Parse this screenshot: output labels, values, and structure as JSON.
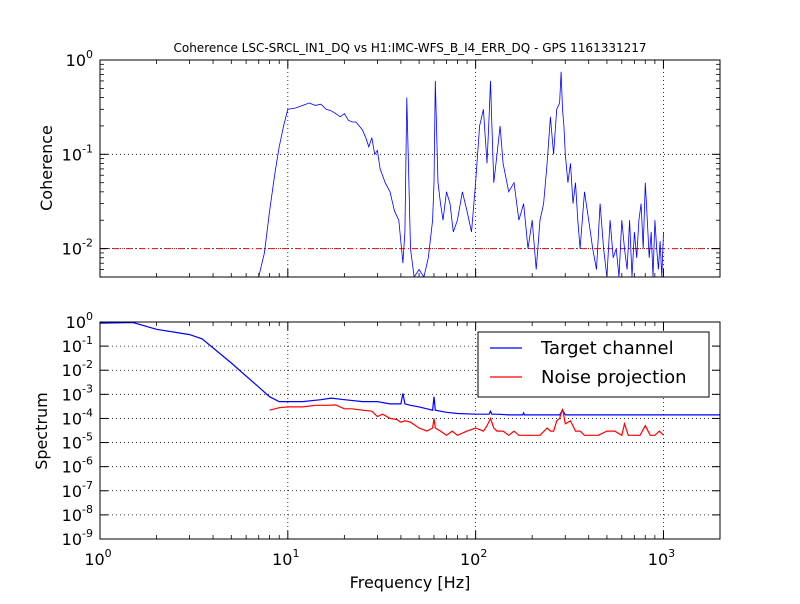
{
  "figure": {
    "title": "Coherence LSC-SRCL_IN1_DQ vs H1:IMC-WFS_B_I4_ERR_DQ - GPS 1161331217",
    "xlabel": "Frequency [Hz]"
  },
  "chart_data": [
    {
      "type": "line",
      "panel": "coherence",
      "title": "Coherence LSC-SRCL_IN1_DQ vs H1:IMC-WFS_B_I4_ERR_DQ - GPS 1161331217",
      "xlabel": "Frequency [Hz]",
      "ylabel": "Coherence",
      "xscale": "log",
      "yscale": "log",
      "xlim": [
        1,
        2000
      ],
      "ylim": [
        0.005,
        1
      ],
      "grid": true,
      "color": "#0000ff",
      "threshold": {
        "value": 0.01,
        "color": "#ff0000",
        "style": "dash-dot"
      },
      "x_ticks": [
        {
          "value": 1,
          "base": "10",
          "exp": "0"
        },
        {
          "value": 10,
          "base": "10",
          "exp": "1"
        },
        {
          "value": 100,
          "base": "10",
          "exp": "2"
        },
        {
          "value": 1000,
          "base": "10",
          "exp": "3"
        }
      ],
      "y_ticks": [
        {
          "value": 1,
          "base": "10",
          "exp": "0"
        },
        {
          "value": 0.1,
          "base": "10",
          "exp": "-1"
        },
        {
          "value": 0.01,
          "base": "10",
          "exp": "-2"
        }
      ],
      "series": [
        {
          "x": [
            7,
            7.5,
            8,
            8.5,
            9,
            9.5,
            10,
            11,
            12,
            13,
            14,
            15,
            16,
            17,
            18,
            19,
            20,
            21,
            22,
            23,
            24,
            25,
            26,
            27,
            28,
            29,
            30,
            31,
            33,
            35,
            37,
            39,
            41,
            42,
            43,
            45,
            47,
            50,
            53,
            56,
            59,
            60,
            61,
            63,
            65,
            67,
            70,
            73,
            76,
            80,
            85,
            90,
            95,
            100,
            105,
            110,
            115,
            118,
            120,
            122,
            125,
            130,
            135,
            140,
            150,
            160,
            170,
            180,
            190,
            200,
            210,
            220,
            230,
            240,
            250,
            260,
            270,
            280,
            285,
            290,
            295,
            300,
            310,
            320,
            330,
            340,
            350,
            360,
            380,
            400,
            420,
            440,
            460,
            480,
            500,
            520,
            540,
            560,
            580,
            600,
            620,
            640,
            660,
            680,
            700,
            720,
            740,
            760,
            780,
            800,
            820,
            840,
            860,
            880,
            900,
            920,
            940,
            960,
            980,
            1000
          ],
          "values": [
            0.005,
            0.009,
            0.025,
            0.06,
            0.12,
            0.2,
            0.3,
            0.31,
            0.33,
            0.35,
            0.33,
            0.34,
            0.3,
            0.29,
            0.27,
            0.25,
            0.27,
            0.23,
            0.22,
            0.22,
            0.2,
            0.18,
            0.15,
            0.12,
            0.15,
            0.1,
            0.11,
            0.07,
            0.05,
            0.04,
            0.025,
            0.02,
            0.007,
            0.015,
            0.4,
            0.01,
            0.005,
            0.006,
            0.005,
            0.008,
            0.02,
            0.05,
            0.6,
            0.05,
            0.03,
            0.02,
            0.04,
            0.03,
            0.015,
            0.02,
            0.04,
            0.025,
            0.015,
            0.05,
            0.2,
            0.3,
            0.08,
            0.25,
            0.6,
            0.2,
            0.05,
            0.1,
            0.2,
            0.08,
            0.04,
            0.05,
            0.02,
            0.03,
            0.01,
            0.02,
            0.006,
            0.02,
            0.03,
            0.08,
            0.25,
            0.1,
            0.3,
            0.35,
            0.75,
            0.3,
            0.2,
            0.1,
            0.05,
            0.08,
            0.03,
            0.05,
            0.02,
            0.01,
            0.04,
            0.02,
            0.01,
            0.006,
            0.03,
            0.01,
            0.005,
            0.02,
            0.008,
            0.01,
            0.005,
            0.02,
            0.01,
            0.006,
            0.02,
            0.005,
            0.015,
            0.008,
            0.02,
            0.03,
            0.01,
            0.05,
            0.02,
            0.008,
            0.015,
            0.005,
            0.02,
            0.01,
            0.006,
            0.012,
            0.005,
            0.015
          ]
        }
      ]
    },
    {
      "type": "line",
      "panel": "spectrum",
      "xlabel": "Frequency [Hz]",
      "ylabel": "Spectrum",
      "xscale": "log",
      "yscale": "log",
      "xlim": [
        1,
        2000
      ],
      "ylim": [
        1e-09,
        1
      ],
      "grid": true,
      "legend_position": "top-right",
      "x_ticks": [
        {
          "value": 1,
          "base": "10",
          "exp": "0"
        },
        {
          "value": 10,
          "base": "10",
          "exp": "1"
        },
        {
          "value": 100,
          "base": "10",
          "exp": "2"
        },
        {
          "value": 1000,
          "base": "10",
          "exp": "3"
        }
      ],
      "y_ticks": [
        {
          "value": 1,
          "base": "10",
          "exp": "0"
        },
        {
          "value": 0.1,
          "base": "10",
          "exp": "-1"
        },
        {
          "value": 0.01,
          "base": "10",
          "exp": "-2"
        },
        {
          "value": 0.001,
          "base": "10",
          "exp": "-3"
        },
        {
          "value": 0.0001,
          "base": "10",
          "exp": "-4"
        },
        {
          "value": 1e-05,
          "base": "10",
          "exp": "-5"
        },
        {
          "value": 1e-06,
          "base": "10",
          "exp": "-6"
        },
        {
          "value": 1e-07,
          "base": "10",
          "exp": "-7"
        },
        {
          "value": 1e-08,
          "base": "10",
          "exp": "-8"
        },
        {
          "value": 1e-09,
          "base": "10",
          "exp": "-9"
        }
      ],
      "series": [
        {
          "name": "Target channel",
          "color": "#0000ff",
          "x": [
            1,
            1.5,
            2,
            3,
            3.5,
            5,
            7,
            8,
            9,
            10,
            12,
            15,
            17,
            20,
            25,
            30,
            35,
            40,
            41,
            42,
            45,
            50,
            55,
            59,
            60,
            61,
            65,
            70,
            80,
            100,
            110,
            118,
            120,
            122,
            130,
            150,
            170,
            178,
            180,
            182,
            200,
            250,
            280,
            290,
            300,
            350,
            400,
            500,
            600,
            800,
            1000,
            1500,
            2000
          ],
          "values": [
            0.9,
            0.95,
            0.5,
            0.3,
            0.2,
            0.02,
            0.002,
            0.0008,
            0.0005,
            0.0005,
            0.0005,
            0.0006,
            0.0007,
            0.0006,
            0.0005,
            0.0005,
            0.0004,
            0.0004,
            0.0011,
            0.0004,
            0.00035,
            0.0003,
            0.00025,
            0.00022,
            0.0008,
            0.00022,
            0.0002,
            0.00018,
            0.00016,
            0.00015,
            0.00015,
            0.00015,
            0.0002,
            0.00015,
            0.00015,
            0.00014,
            0.00014,
            0.00014,
            0.00017,
            0.00014,
            0.00014,
            0.00014,
            0.00014,
            0.00022,
            0.00014,
            0.00014,
            0.00014,
            0.00014,
            0.00014,
            0.00014,
            0.00014,
            0.00014,
            0.00014
          ]
        },
        {
          "name": "Noise projection",
          "color": "#ff0000",
          "x": [
            8,
            9,
            10,
            12,
            14,
            16,
            18,
            20,
            22,
            25,
            28,
            30,
            32,
            35,
            38,
            40,
            42,
            45,
            48,
            50,
            55,
            59,
            60,
            61,
            65,
            70,
            75,
            80,
            90,
            100,
            110,
            115,
            120,
            125,
            130,
            140,
            150,
            160,
            170,
            180,
            200,
            220,
            240,
            250,
            260,
            270,
            280,
            290,
            300,
            320,
            340,
            360,
            380,
            400,
            450,
            500,
            550,
            600,
            620,
            650,
            700,
            750,
            800,
            850,
            900,
            950,
            1000
          ],
          "values": [
            0.00022,
            0.00028,
            0.0003,
            0.0003,
            0.00035,
            0.00035,
            0.00036,
            0.00025,
            0.00025,
            0.00022,
            0.0002,
            0.00012,
            0.00015,
            0.0001,
            9e-05,
            7e-05,
            8e-05,
            7e-05,
            5e-05,
            4e-05,
            3e-05,
            4e-05,
            0.0001,
            4e-05,
            3e-05,
            2e-05,
            3e-05,
            2e-05,
            3e-05,
            4e-05,
            3e-05,
            5e-05,
            0.0001,
            4e-05,
            3e-05,
            3e-05,
            2e-05,
            3e-05,
            2e-05,
            2e-05,
            2e-05,
            2e-05,
            4e-05,
            3e-05,
            3e-05,
            8e-05,
            0.0001,
            0.00025,
            6e-05,
            8e-05,
            3e-05,
            3e-05,
            2e-05,
            2e-05,
            2e-05,
            3e-05,
            3e-05,
            2e-05,
            6e-05,
            2e-05,
            2e-05,
            2e-05,
            5e-05,
            2e-05,
            2e-05,
            3e-05,
            2e-05
          ]
        }
      ]
    }
  ]
}
